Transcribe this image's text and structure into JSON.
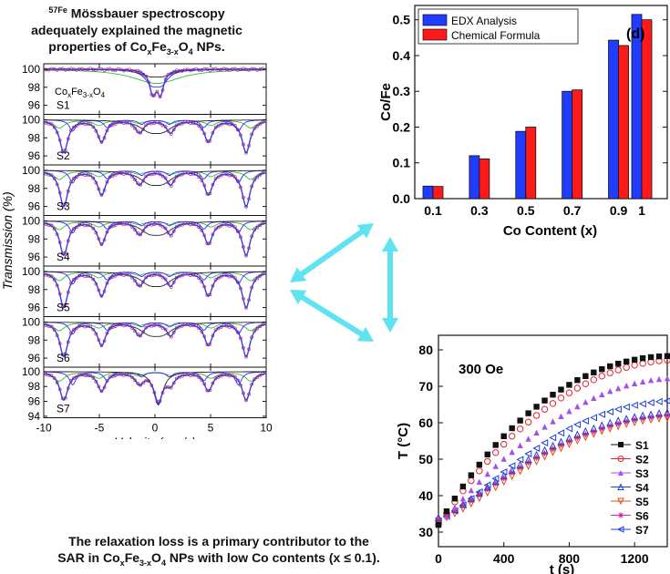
{
  "top_caption": {
    "line1_sup": "57Fe",
    "line1": "Mössbauer spectroscopy",
    "line2": "adequately explained the magnetic",
    "line3_pre": "properties of Co",
    "line3_sub1": "x",
    "line3_mid": "Fe",
    "line3_sub2": "3-x",
    "line3_o": "O",
    "line3_sub3": "4",
    "line3_post": " NPs."
  },
  "bottom_caption": {
    "line1": "The relaxation loss is a primary contributor to the",
    "line2_pre": "SAR in Co",
    "line2_sub1": "x",
    "line2_mid": "Fe",
    "line2_sub2": "3-x",
    "line2_o": "O",
    "line2_sub3": "4",
    "line2_post": " NPs with low Co contents (x ≤ 0.1)."
  },
  "colors": {
    "data": "#c8286e",
    "fit": "#3c3cdc",
    "blue": "#2b2bff",
    "green": "#2fbf3f",
    "dark": "#222222",
    "olive": "#9a9a2a",
    "edx": "#1f3cff",
    "chem": "#ff1a1a",
    "arrow": "#5fe3f0"
  },
  "chart_data": [
    {
      "type": "line",
      "chart": "mossbauer-stack",
      "xlabel": "Velocity (mm/s)",
      "ylabel": "Transmission (%)",
      "xlim": [
        -10,
        10
      ],
      "xticks": [
        -10,
        -5,
        0,
        5,
        10
      ],
      "inset_formula": {
        "pre": "Co",
        "sub1": "x",
        "mid": "Fe",
        "sub2": "3-x",
        "o": "O",
        "sub3": "4"
      },
      "panels": [
        {
          "name": "S1",
          "ylim": [
            95,
            100.6
          ],
          "yticks": [
            100,
            98,
            96
          ],
          "kind": "doublet",
          "depth": 4.6
        },
        {
          "name": "S2",
          "ylim": [
            95,
            100.6
          ],
          "yticks": [
            100,
            98,
            96
          ],
          "kind": "sextet",
          "depth": 4.0
        },
        {
          "name": "S3",
          "ylim": [
            95,
            100.6
          ],
          "yticks": [
            100,
            98,
            96
          ],
          "kind": "sextet",
          "depth": 4.4
        },
        {
          "name": "S4",
          "ylim": [
            95,
            100.6
          ],
          "yticks": [
            100,
            98,
            96
          ],
          "kind": "sextet",
          "depth": 4.2
        },
        {
          "name": "S5",
          "ylim": [
            95,
            100.6
          ],
          "yticks": [
            100,
            98,
            96
          ],
          "kind": "sextet",
          "depth": 4.4
        },
        {
          "name": "S6",
          "ylim": [
            95,
            100.6
          ],
          "yticks": [
            100,
            98,
            96
          ],
          "kind": "sextet",
          "depth": 4.2
        },
        {
          "name": "S7",
          "ylim": [
            93.8,
            100.6
          ],
          "yticks": [
            100,
            98,
            96,
            94
          ],
          "kind": "mixed",
          "depth": 5.6
        }
      ]
    },
    {
      "type": "bar",
      "chart": "co-fe-ratio",
      "panel_label": "(d)",
      "categories": [
        "0.1",
        "0.3",
        "0.5",
        "0.7",
        "0.9",
        "1"
      ],
      "x": [
        0.1,
        0.3,
        0.5,
        0.7,
        0.9,
        1.0
      ],
      "xlabel": "Co Content (x)",
      "ylabel": "Co/Fe",
      "ylim": [
        0,
        0.54
      ],
      "yticks": [
        0.0,
        0.1,
        0.2,
        0.3,
        0.4,
        0.5
      ],
      "legend": "top-left",
      "series": [
        {
          "name": "EDX Analysis",
          "values": [
            0.035,
            0.12,
            0.188,
            0.3,
            0.443,
            0.515
          ]
        },
        {
          "name": "Chemical Formula",
          "values": [
            0.034,
            0.111,
            0.2,
            0.304,
            0.428,
            0.5
          ]
        }
      ]
    },
    {
      "type": "scatter",
      "chart": "heating-curves",
      "annotation": "300 Oe",
      "xlabel": "t (s)",
      "ylabel": "T (°C)",
      "xlim": [
        0,
        1400
      ],
      "ylim": [
        26,
        84
      ],
      "xticks": [
        0,
        400,
        800,
        1200
      ],
      "yticks": [
        30,
        40,
        50,
        60,
        70,
        80
      ],
      "legend": "bottom-right",
      "t": [
        0,
        50,
        100,
        150,
        200,
        250,
        300,
        350,
        400,
        450,
        500,
        550,
        600,
        650,
        700,
        750,
        800,
        850,
        900,
        950,
        1000,
        1050,
        1100,
        1150,
        1200,
        1250,
        1300,
        1350,
        1400
      ],
      "series": [
        {
          "name": "S1",
          "marker": "square-filled",
          "color": "#111111",
          "values": [
            32.0,
            35.7,
            39.2,
            42.5,
            45.6,
            48.5,
            51.3,
            53.9,
            56.3,
            58.5,
            60.6,
            62.6,
            64.4,
            66.1,
            67.7,
            69.1,
            70.4,
            71.7,
            72.8,
            73.8,
            74.7,
            75.5,
            76.2,
            76.8,
            77.3,
            77.7,
            78.0,
            78.2,
            78.3
          ]
        },
        {
          "name": "S2",
          "marker": "circle-open",
          "color": "#e8202a",
          "values": [
            32.0,
            35.2,
            38.3,
            41.3,
            44.1,
            46.8,
            49.4,
            51.8,
            54.1,
            56.3,
            58.3,
            60.2,
            62.0,
            63.7,
            65.3,
            66.8,
            68.2,
            69.5,
            70.7,
            71.8,
            72.8,
            73.7,
            74.5,
            75.2,
            75.8,
            76.3,
            76.7,
            77.0,
            77.2
          ]
        },
        {
          "name": "S3",
          "marker": "triangle-filled",
          "color": "#a44ff0",
          "values": [
            32.0,
            34.4,
            36.8,
            39.2,
            41.5,
            43.8,
            46.0,
            48.1,
            50.1,
            52.0,
            53.8,
            55.6,
            57.3,
            58.9,
            60.4,
            61.8,
            63.2,
            64.5,
            65.7,
            66.8,
            67.8,
            68.7,
            69.5,
            70.2,
            70.8,
            71.3,
            71.7,
            72.0,
            72.2
          ]
        },
        {
          "name": "S4",
          "marker": "triangle-open",
          "color": "#1a40d8",
          "values": [
            34.0,
            35.0,
            36.2,
            37.6,
            39.1,
            40.7,
            42.3,
            43.9,
            45.5,
            47.0,
            48.5,
            49.9,
            51.2,
            52.5,
            53.7,
            54.8,
            55.8,
            56.8,
            57.7,
            58.5,
            59.3,
            60.0,
            60.6,
            61.1,
            61.6,
            62.0,
            62.3,
            62.6,
            62.8
          ]
        },
        {
          "name": "S5",
          "marker": "triangle-down-open",
          "color": "#e04a10",
          "values": [
            33.0,
            34.0,
            35.1,
            36.4,
            37.8,
            39.3,
            40.8,
            42.3,
            43.8,
            45.3,
            46.7,
            48.1,
            49.4,
            50.7,
            51.9,
            53.0,
            54.1,
            55.1,
            56.0,
            56.9,
            57.7,
            58.4,
            59.0,
            59.6,
            60.1,
            60.5,
            60.8,
            61.1,
            61.3
          ]
        },
        {
          "name": "S6",
          "marker": "star",
          "color": "#e020b0",
          "values": [
            33.5,
            34.6,
            35.8,
            37.2,
            38.7,
            40.2,
            41.8,
            43.3,
            44.8,
            46.3,
            47.7,
            49.1,
            50.4,
            51.6,
            52.8,
            53.9,
            54.9,
            55.9,
            56.8,
            57.6,
            58.4,
            59.1,
            59.7,
            60.3,
            60.8,
            61.2,
            61.5,
            61.8,
            62.0
          ]
        },
        {
          "name": "S7",
          "marker": "triangle-left-open",
          "color": "#1a40d8",
          "values": [
            33.0,
            34.3,
            35.8,
            37.4,
            39.2,
            41.0,
            42.9,
            44.7,
            46.5,
            48.2,
            49.9,
            51.5,
            53.0,
            54.5,
            55.9,
            57.2,
            58.4,
            59.5,
            60.5,
            61.4,
            62.3,
            63.0,
            63.7,
            64.3,
            64.8,
            65.2,
            65.5,
            65.8,
            66.0
          ]
        }
      ]
    }
  ]
}
